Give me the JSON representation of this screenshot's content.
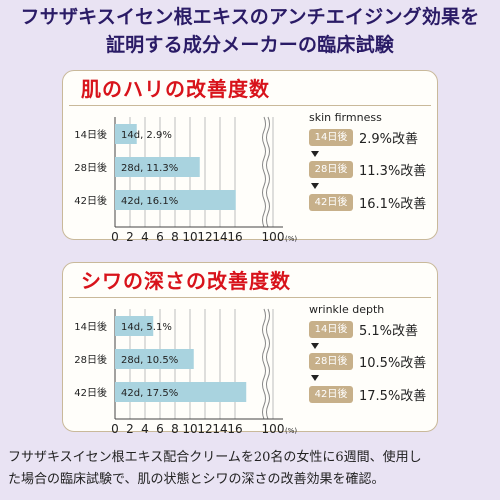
{
  "headline": {
    "line1": "フサザキスイセン根エキスのアンチエイジング効果を",
    "line2": "証明する成分メーカーの臨床試験"
  },
  "panels": [
    {
      "title": "肌のハリの改善度数",
      "metric_en": "skin firmness",
      "results": [
        {
          "badge": "14日後",
          "text": "2.9%改善"
        },
        {
          "badge": "28日後",
          "text": "11.3%改善"
        },
        {
          "badge": "42日後",
          "text": "16.1%改善"
        }
      ]
    },
    {
      "title": "シワの深さの改善度数",
      "metric_en": "wrinkle depth",
      "results": [
        {
          "badge": "14日後",
          "text": "5.1%改善"
        },
        {
          "badge": "28日後",
          "text": "10.5%改善"
        },
        {
          "badge": "42日後",
          "text": "17.5%改善"
        }
      ]
    }
  ],
  "chart_data": [
    {
      "type": "bar",
      "orientation": "horizontal",
      "title": "肌のハリの改善度数",
      "categories": [
        "14日後",
        "28日後",
        "42日後"
      ],
      "bar_labels": [
        "14d, 2.9%",
        "28d, 11.3%",
        "42d, 16.1%"
      ],
      "values": [
        2.9,
        11.3,
        16.1
      ],
      "x_ticks": [
        "0",
        "2",
        "4",
        "6",
        "8",
        "10",
        "12",
        "14",
        "16"
      ],
      "x_break_tick": "100",
      "x_unit": "(%)",
      "xlim": [
        0,
        18
      ],
      "axis_break": true,
      "grid": true,
      "bar_color": "#a9d3df"
    },
    {
      "type": "bar",
      "orientation": "horizontal",
      "title": "シワの深さの改善度数",
      "categories": [
        "14日後",
        "28日後",
        "42日後"
      ],
      "bar_labels": [
        "14d, 5.1%",
        "28d, 10.5%",
        "42d, 17.5%"
      ],
      "values": [
        5.1,
        10.5,
        17.5
      ],
      "x_ticks": [
        "0",
        "2",
        "4",
        "6",
        "8",
        "10",
        "12",
        "14",
        "16"
      ],
      "x_break_tick": "100",
      "x_unit": "(%)",
      "xlim": [
        0,
        18
      ],
      "axis_break": true,
      "grid": true,
      "bar_color": "#a9d3df"
    }
  ],
  "footer": {
    "line1": "フサザキスイセン根エキス配合クリームを20名の女性に6週間、使用し",
    "line2": "た場合の臨床試験で、肌の状態とシワの深さの改善効果を確認。"
  }
}
